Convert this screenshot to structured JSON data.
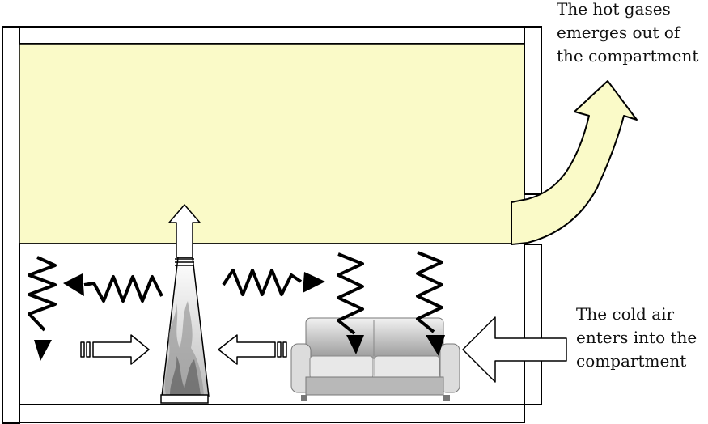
{
  "captions": {
    "hot_gases": [
      "The hot gases",
      "emerges out of",
      "the compartment"
    ],
    "cold_air": [
      "The cold air",
      "enters into the",
      "compartment"
    ]
  },
  "colors": {
    "hot_layer": "#fafac8",
    "outline": "#000000",
    "wall_fill": "#ffffff",
    "radiation": "#000000",
    "sofa_light": "#e6e6e6",
    "sofa_dark": "#8a8a8a"
  },
  "icons": {
    "fire": "fire-icon",
    "sofa": "sofa-icon",
    "radiation": "radiation-wave-arrow-icon",
    "flow": "hollow-arrow-icon"
  }
}
